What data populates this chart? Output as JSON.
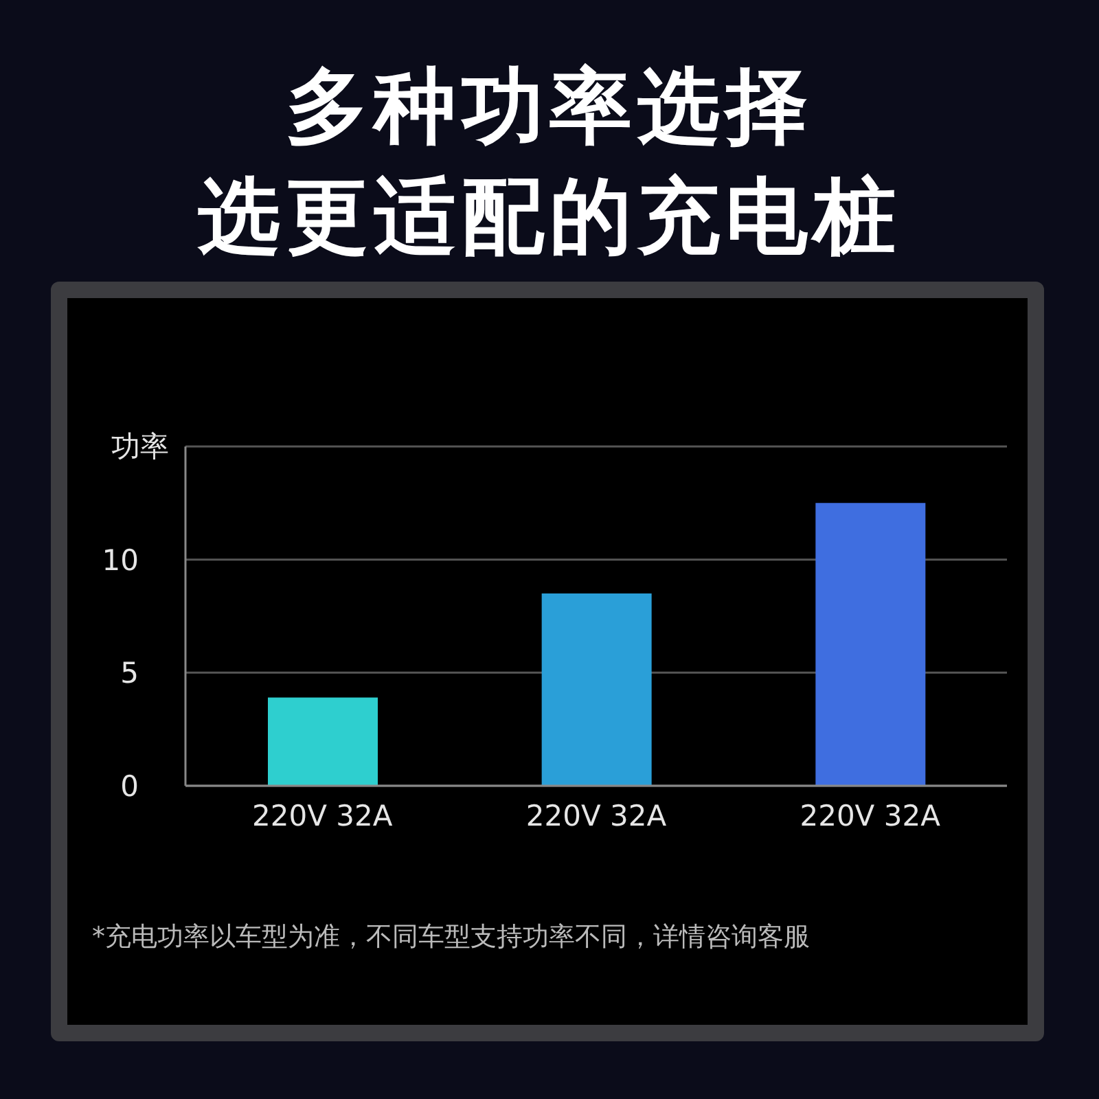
{
  "chart_data": {
    "type": "bar",
    "title": "多种功率选择",
    "subtitle": "选更适配的充电桩",
    "ylabel": "功率",
    "categories": [
      "220V 32A",
      "220V 32A",
      "220V 32A"
    ],
    "values": [
      3.9,
      8.5,
      12.5
    ],
    "colors": [
      "#2ecfcf",
      "#2a9fd8",
      "#3f6ee0"
    ],
    "ylim": [
      0,
      15
    ],
    "yticks": [
      0,
      5,
      10,
      {
        "value": 15,
        "label": null
      }
    ],
    "grid": "y",
    "legend": false,
    "annotations": [
      "*充电功率以车型为准，不同车型支持功率不同，详情咨询客服"
    ]
  }
}
